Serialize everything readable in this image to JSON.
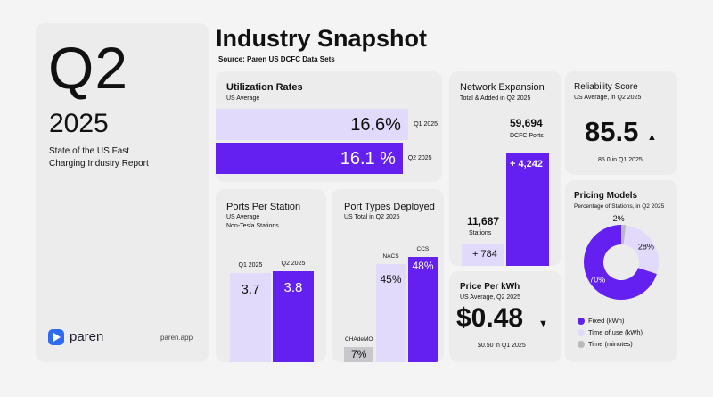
{
  "colors": {
    "accent": "#6420f0",
    "accent_light": "#e2dafa",
    "gray": "#c8c8cc",
    "card": "#ececed"
  },
  "cover": {
    "quarter": "Q2",
    "year": "2025",
    "subtitle_line1": "State of the US Fast",
    "subtitle_line2": "Charging Industry Report",
    "brand": "paren",
    "brand_icon": "paren-logo-icon",
    "site": "paren.app"
  },
  "header": {
    "title": "Industry Snapshot",
    "source": "Source: Paren US DCFC Data Sets"
  },
  "chart_data": [
    {
      "id": "utilization",
      "type": "bar",
      "title": "Utilization Rates",
      "subtitle": "US Average",
      "categories": [
        "Q1 2025",
        "Q2 2025"
      ],
      "values": [
        16.6,
        16.1
      ],
      "value_labels": [
        "16.6%",
        "16.1 %"
      ],
      "xlim": [
        0,
        19.5
      ]
    },
    {
      "id": "network",
      "type": "bar",
      "title": "Network Expansion",
      "subtitle": "Total & Added in Q2 2025",
      "categories": [
        "Stations",
        "DCFC Ports"
      ],
      "totals": [
        11687,
        59694
      ],
      "total_labels": [
        "11,687",
        "59,694"
      ],
      "added": [
        784,
        4242
      ],
      "added_labels": [
        "+ 784",
        "+ 4,242"
      ]
    },
    {
      "id": "ports_per_station",
      "type": "bar",
      "title": "Ports Per Station",
      "subtitle_line1": "US Average",
      "subtitle_line2": "Non-Tesla Stations",
      "categories": [
        "Q1 2025",
        "Q2 2025"
      ],
      "values": [
        3.7,
        3.8
      ],
      "value_labels": [
        "3.7",
        "3.8"
      ],
      "ylim": [
        0,
        4.45
      ]
    },
    {
      "id": "port_types",
      "type": "bar",
      "title": "Port Types Deployed",
      "subtitle": "US Total in Q2 2025",
      "categories": [
        "CHAdeMO",
        "NACS",
        "CCS"
      ],
      "values": [
        7,
        45,
        48
      ],
      "value_labels": [
        "7%",
        "45%",
        "48%"
      ],
      "ylim": [
        0,
        53
      ]
    },
    {
      "id": "pricing",
      "type": "pie",
      "title": "Pricing Models",
      "subtitle": "Percentage of Stations, in Q2 2025",
      "categories": [
        "Fixed (kWh)",
        "Time of use (kWh)",
        "Time (minutes)"
      ],
      "values": [
        70,
        28,
        2
      ],
      "value_labels": [
        "70%",
        "28%",
        "2%"
      ],
      "colors": [
        "#6420f0",
        "#e2dafa",
        "#b9b9be"
      ]
    }
  ],
  "reliability": {
    "title": "Reliability Score",
    "subtitle": "US Average, in Q2 2025",
    "value": "85.5",
    "arrow": "▲",
    "compare": "85.0 in Q1 2025"
  },
  "price": {
    "title": "Price Per kWh",
    "subtitle": "US Average, Q2 2025",
    "value": "$0.48",
    "arrow": "▼",
    "compare": "$0.50 in Q1 2025"
  }
}
